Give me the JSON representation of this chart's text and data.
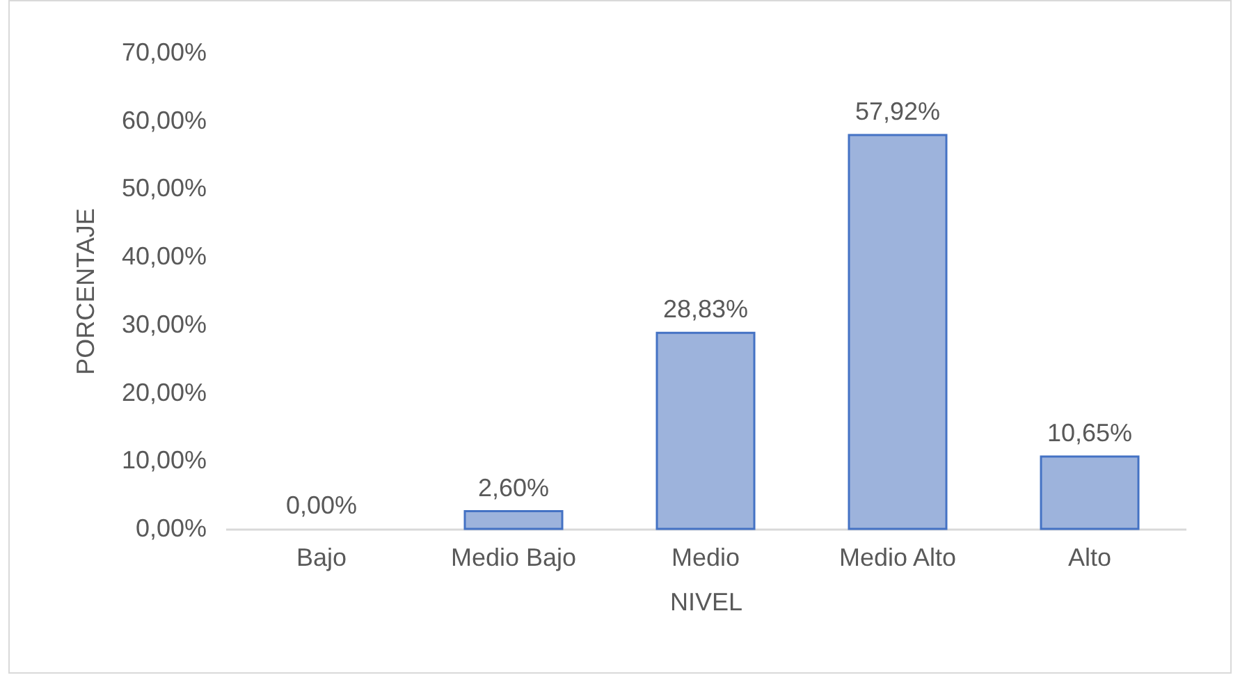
{
  "chart_data": {
    "type": "bar",
    "xlabel": "NIVEL",
    "ylabel": "PORCENTAJE",
    "categories": [
      "Bajo",
      "Medio Bajo",
      "Medio",
      "Medio Alto",
      "Alto"
    ],
    "values": [
      0,
      2.6,
      28.83,
      57.92,
      10.65
    ],
    "value_labels": [
      "0,00%",
      "2,60%",
      "28,83%",
      "57,92%",
      "10,65%"
    ],
    "color": "#9db3dc",
    "ylim": [
      0,
      70
    ],
    "yticks": [
      {
        "value": 0,
        "label": "0,00%"
      },
      {
        "value": 10,
        "label": "10,00%"
      },
      {
        "value": 20,
        "label": "20,00%"
      },
      {
        "value": 30,
        "label": "30,00%"
      },
      {
        "value": 40,
        "label": "40,00%"
      },
      {
        "value": 50,
        "label": "50,00%"
      },
      {
        "value": 60,
        "label": "60,00%"
      },
      {
        "value": 70,
        "label": "70,00%"
      }
    ],
    "grid": false
  }
}
